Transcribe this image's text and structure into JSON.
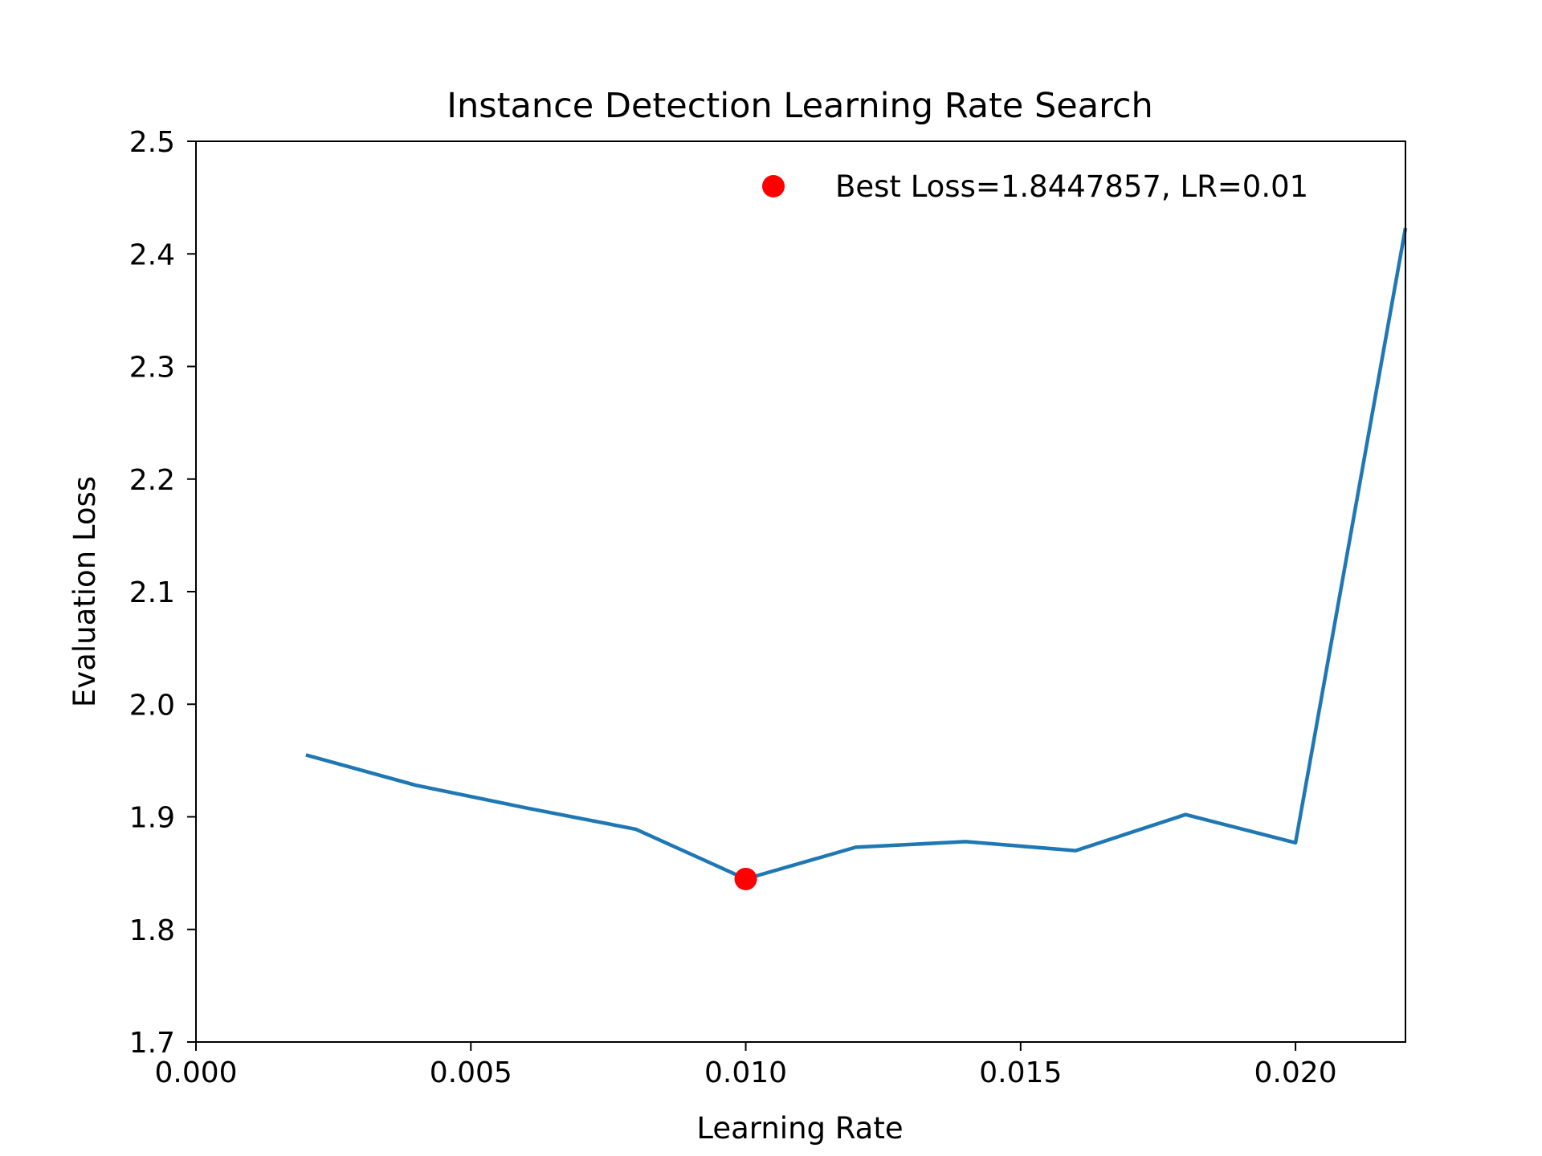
{
  "chart_data": {
    "type": "line",
    "title": "Instance Detection Learning Rate Search",
    "xlabel": "Learning Rate",
    "ylabel": "Evaluation Loss",
    "xlim": [
      0.0,
      0.022
    ],
    "ylim": [
      1.7,
      2.5
    ],
    "x_ticks": [
      "0.000",
      "0.005",
      "0.010",
      "0.015",
      "0.020"
    ],
    "x_tick_values": [
      0.0,
      0.005,
      0.01,
      0.015,
      0.02
    ],
    "y_ticks": [
      "1.7",
      "1.8",
      "1.9",
      "2.0",
      "2.1",
      "2.2",
      "2.3",
      "2.4",
      "2.5"
    ],
    "y_tick_values": [
      1.7,
      1.8,
      1.9,
      2.0,
      2.1,
      2.2,
      2.3,
      2.4,
      2.5
    ],
    "grid": false,
    "legend_position": "top-right",
    "series": [
      {
        "color": "#1f77b4",
        "x": [
          0.002,
          0.004,
          0.006,
          0.008,
          0.01,
          0.012,
          0.014,
          0.016,
          0.018,
          0.02,
          0.022
        ],
        "y": [
          1.955,
          1.928,
          1.908,
          1.889,
          1.8447857,
          1.873,
          1.878,
          1.87,
          1.902,
          1.877,
          2.423
        ]
      }
    ],
    "best_point": {
      "label": "Best Loss=1.8447857, LR=0.01",
      "x": 0.01,
      "y": 1.8447857,
      "color": "#ff0000"
    }
  }
}
